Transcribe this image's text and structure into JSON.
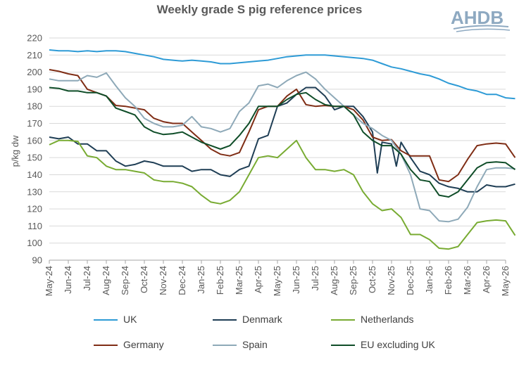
{
  "title": "Weekly grade S pig reference prices",
  "logo": "AHDB",
  "colors": {
    "UK": "#2e9bd6",
    "Denmark": "#1f3e55",
    "Netherlands": "#78ab32",
    "Germany": "#7f2d15",
    "Spain": "#8ea9b8",
    "EU excluding UK": "#0f4d28"
  },
  "chart_data": {
    "type": "line",
    "title": "Weekly grade S pig reference prices",
    "ylabel": "p/kg dw",
    "xlabel": "",
    "ylim": [
      90,
      220
    ],
    "yticks": [
      90,
      100,
      110,
      120,
      130,
      140,
      150,
      160,
      170,
      180,
      190,
      200,
      210,
      220
    ],
    "grid": true,
    "legend_position": "bottom",
    "x_categories": [
      "May-24",
      "Jun-24",
      "Jul-24",
      "Aug-24",
      "Sep-24",
      "Oct-24",
      "Nov-24",
      "Dec-24",
      "Jan-25",
      "Feb-25",
      "Mar-25",
      "Apr-25",
      "May-25",
      "Jun-25",
      "Jul-25",
      "Aug-25",
      "Sep-25",
      "Oct-25",
      "Nov-25",
      "Dec-25",
      "Jan-26",
      "Feb-26",
      "Mar-26",
      "Apr-26",
      "May-26"
    ],
    "series": [
      {
        "name": "UK",
        "values": [
          [
            0,
            213
          ],
          [
            0.5,
            212.5
          ],
          [
            1,
            212.5
          ],
          [
            1.5,
            212
          ],
          [
            2,
            212.5
          ],
          [
            2.5,
            212
          ],
          [
            3,
            212.5
          ],
          [
            3.5,
            212.5
          ],
          [
            4,
            212
          ],
          [
            4.5,
            211
          ],
          [
            5,
            210
          ],
          [
            5.5,
            209
          ],
          [
            6,
            207.5
          ],
          [
            6.5,
            207
          ],
          [
            7,
            206.5
          ],
          [
            7.5,
            207
          ],
          [
            8,
            206.5
          ],
          [
            8.5,
            206
          ],
          [
            9,
            205
          ],
          [
            9.5,
            205
          ],
          [
            10,
            205.5
          ],
          [
            10.5,
            206
          ],
          [
            11,
            206.5
          ],
          [
            11.5,
            207
          ],
          [
            12,
            208
          ],
          [
            12.5,
            209
          ],
          [
            13,
            209.5
          ],
          [
            13.5,
            210
          ],
          [
            14,
            210
          ],
          [
            14.5,
            210
          ],
          [
            15,
            209.5
          ],
          [
            15.5,
            209
          ],
          [
            16,
            208.5
          ],
          [
            16.5,
            208
          ],
          [
            17,
            207
          ],
          [
            17.5,
            205
          ],
          [
            18,
            203
          ],
          [
            18.5,
            202
          ],
          [
            19,
            200.5
          ],
          [
            19.5,
            199
          ],
          [
            20,
            198
          ],
          [
            20.5,
            196
          ],
          [
            21,
            193.5
          ],
          [
            21.5,
            192
          ],
          [
            22,
            190
          ],
          [
            22.5,
            189
          ],
          [
            23,
            187
          ],
          [
            23.5,
            187
          ],
          [
            24,
            185
          ],
          [
            24.5,
            184.5
          ]
        ]
      },
      {
        "name": "Denmark",
        "values": [
          [
            0,
            162
          ],
          [
            0.5,
            161
          ],
          [
            1,
            162
          ],
          [
            1.5,
            158
          ],
          [
            2,
            158
          ],
          [
            2.5,
            154
          ],
          [
            3,
            154
          ],
          [
            3.5,
            148
          ],
          [
            4,
            145
          ],
          [
            4.5,
            146
          ],
          [
            5,
            148
          ],
          [
            5.5,
            147
          ],
          [
            6,
            145
          ],
          [
            6.5,
            145
          ],
          [
            7,
            145
          ],
          [
            7.5,
            142
          ],
          [
            8,
            143
          ],
          [
            8.5,
            143
          ],
          [
            9,
            140
          ],
          [
            9.5,
            139
          ],
          [
            10,
            143
          ],
          [
            10.5,
            145
          ],
          [
            11,
            161
          ],
          [
            11.5,
            163
          ],
          [
            12,
            180
          ],
          [
            12.5,
            182
          ],
          [
            13,
            187
          ],
          [
            13.5,
            191
          ],
          [
            14,
            191
          ],
          [
            14.5,
            186
          ],
          [
            15,
            178
          ],
          [
            15.5,
            180
          ],
          [
            16,
            180
          ],
          [
            16.5,
            174
          ],
          [
            17,
            165
          ],
          [
            17.25,
            141
          ],
          [
            17.5,
            159
          ],
          [
            18,
            158
          ],
          [
            18.25,
            145
          ],
          [
            18.5,
            159
          ],
          [
            19,
            150
          ],
          [
            19.5,
            142
          ],
          [
            20,
            140
          ],
          [
            20.5,
            135
          ],
          [
            21,
            133
          ],
          [
            21.5,
            132
          ],
          [
            22,
            130
          ],
          [
            22.5,
            130
          ],
          [
            23,
            134
          ],
          [
            23.5,
            133
          ],
          [
            24,
            133
          ],
          [
            24.5,
            134.5
          ]
        ]
      },
      {
        "name": "Netherlands",
        "values": [
          [
            0,
            157.5
          ],
          [
            0.5,
            160
          ],
          [
            1,
            160
          ],
          [
            1.5,
            159.5
          ],
          [
            2,
            151
          ],
          [
            2.5,
            150
          ],
          [
            3,
            145
          ],
          [
            3.5,
            143
          ],
          [
            4,
            143
          ],
          [
            4.5,
            142
          ],
          [
            5,
            141
          ],
          [
            5.5,
            137
          ],
          [
            6,
            136
          ],
          [
            6.5,
            136
          ],
          [
            7,
            135
          ],
          [
            7.5,
            133
          ],
          [
            8,
            128
          ],
          [
            8.5,
            124
          ],
          [
            9,
            123
          ],
          [
            9.5,
            125
          ],
          [
            10,
            130
          ],
          [
            10.5,
            140
          ],
          [
            11,
            150
          ],
          [
            11.5,
            151
          ],
          [
            12,
            150
          ],
          [
            12.5,
            155
          ],
          [
            13,
            160
          ],
          [
            13.5,
            150
          ],
          [
            14,
            143
          ],
          [
            14.5,
            143
          ],
          [
            15,
            142
          ],
          [
            15.5,
            143
          ],
          [
            16,
            140
          ],
          [
            16.5,
            130
          ],
          [
            17,
            123
          ],
          [
            17.5,
            119
          ],
          [
            18,
            120
          ],
          [
            18.5,
            115
          ],
          [
            19,
            105
          ],
          [
            19.5,
            105
          ],
          [
            20,
            102
          ],
          [
            20.5,
            97
          ],
          [
            21,
            96.5
          ],
          [
            21.5,
            98
          ],
          [
            22,
            105
          ],
          [
            22.5,
            112
          ],
          [
            23,
            113
          ],
          [
            23.5,
            113.5
          ],
          [
            24,
            113
          ],
          [
            24.5,
            104.5
          ]
        ]
      },
      {
        "name": "Germany",
        "values": [
          [
            0,
            201.5
          ],
          [
            0.5,
            200.5
          ],
          [
            1,
            199
          ],
          [
            1.5,
            198
          ],
          [
            2,
            190
          ],
          [
            2.5,
            188
          ],
          [
            3,
            186
          ],
          [
            3.5,
            180.5
          ],
          [
            4,
            180
          ],
          [
            4.5,
            179
          ],
          [
            5,
            178
          ],
          [
            5.5,
            173
          ],
          [
            6,
            171
          ],
          [
            6.5,
            170
          ],
          [
            7,
            170
          ],
          [
            7.5,
            165
          ],
          [
            8,
            160
          ],
          [
            8.5,
            155
          ],
          [
            9,
            152
          ],
          [
            9.5,
            151
          ],
          [
            10,
            153
          ],
          [
            10.5,
            165
          ],
          [
            11,
            178
          ],
          [
            11.5,
            180
          ],
          [
            12,
            180
          ],
          [
            12.5,
            186
          ],
          [
            13,
            190
          ],
          [
            13.5,
            181
          ],
          [
            14,
            180
          ],
          [
            14.5,
            180.5
          ],
          [
            15,
            180
          ],
          [
            15.5,
            180
          ],
          [
            16,
            178
          ],
          [
            16.5,
            172
          ],
          [
            17,
            162
          ],
          [
            17.5,
            160
          ],
          [
            18,
            160.5
          ],
          [
            18.5,
            154
          ],
          [
            19,
            151
          ],
          [
            19.5,
            151
          ],
          [
            20,
            151
          ],
          [
            20.5,
            137
          ],
          [
            21,
            136
          ],
          [
            21.5,
            140
          ],
          [
            22,
            149
          ],
          [
            22.5,
            157
          ],
          [
            23,
            158
          ],
          [
            23.5,
            158.5
          ],
          [
            24,
            158
          ],
          [
            24.5,
            150
          ]
        ]
      },
      {
        "name": "Spain",
        "values": [
          [
            0,
            196
          ],
          [
            0.5,
            195
          ],
          [
            1,
            195
          ],
          [
            1.5,
            195
          ],
          [
            2,
            198
          ],
          [
            2.5,
            197
          ],
          [
            3,
            199.5
          ],
          [
            3.5,
            192
          ],
          [
            4,
            185
          ],
          [
            4.5,
            180
          ],
          [
            5,
            173
          ],
          [
            5.5,
            170
          ],
          [
            6,
            168
          ],
          [
            6.5,
            168
          ],
          [
            7,
            169
          ],
          [
            7.5,
            174
          ],
          [
            8,
            168
          ],
          [
            8.5,
            167
          ],
          [
            9,
            165
          ],
          [
            9.5,
            167
          ],
          [
            10,
            177
          ],
          [
            10.5,
            182
          ],
          [
            11,
            192
          ],
          [
            11.5,
            193
          ],
          [
            12,
            191
          ],
          [
            12.5,
            195
          ],
          [
            13,
            198
          ],
          [
            13.5,
            200
          ],
          [
            14,
            196
          ],
          [
            14.5,
            190
          ],
          [
            15,
            185
          ],
          [
            15.5,
            180
          ],
          [
            16,
            175
          ],
          [
            16.5,
            170
          ],
          [
            17,
            167
          ],
          [
            17.5,
            163
          ],
          [
            18,
            160
          ],
          [
            18.5,
            152
          ],
          [
            19,
            140
          ],
          [
            19.5,
            120
          ],
          [
            20,
            119
          ],
          [
            20.5,
            113
          ],
          [
            21,
            112.5
          ],
          [
            21.5,
            114
          ],
          [
            22,
            121
          ],
          [
            22.5,
            133
          ],
          [
            23,
            143
          ],
          [
            23.5,
            144
          ],
          [
            24,
            144
          ],
          [
            24.5,
            143.5
          ]
        ]
      },
      {
        "name": "EU excluding UK",
        "values": [
          [
            0,
            191
          ],
          [
            0.5,
            190.5
          ],
          [
            1,
            189
          ],
          [
            1.5,
            189
          ],
          [
            2,
            188
          ],
          [
            2.5,
            188
          ],
          [
            3,
            186
          ],
          [
            3.5,
            179
          ],
          [
            4,
            177
          ],
          [
            4.5,
            175
          ],
          [
            5,
            168
          ],
          [
            5.5,
            165
          ],
          [
            6,
            163.5
          ],
          [
            6.5,
            164
          ],
          [
            7,
            165
          ],
          [
            7.5,
            162
          ],
          [
            8,
            159
          ],
          [
            8.5,
            157
          ],
          [
            9,
            155
          ],
          [
            9.5,
            157
          ],
          [
            10,
            163
          ],
          [
            10.5,
            170
          ],
          [
            11,
            180
          ],
          [
            11.5,
            180
          ],
          [
            12,
            180
          ],
          [
            12.5,
            184
          ],
          [
            13,
            187
          ],
          [
            13.5,
            188
          ],
          [
            14,
            184
          ],
          [
            14.5,
            181
          ],
          [
            15,
            180
          ],
          [
            15.5,
            180
          ],
          [
            16,
            175
          ],
          [
            16.5,
            165
          ],
          [
            17,
            160
          ],
          [
            17.5,
            157
          ],
          [
            18,
            157
          ],
          [
            18.5,
            152
          ],
          [
            19,
            143
          ],
          [
            19.5,
            137
          ],
          [
            20,
            136
          ],
          [
            20.5,
            128
          ],
          [
            21,
            127
          ],
          [
            21.5,
            130
          ],
          [
            22,
            137
          ],
          [
            22.5,
            144
          ],
          [
            23,
            147
          ],
          [
            23.5,
            147.5
          ],
          [
            24,
            147
          ],
          [
            24.5,
            143
          ]
        ]
      }
    ]
  }
}
